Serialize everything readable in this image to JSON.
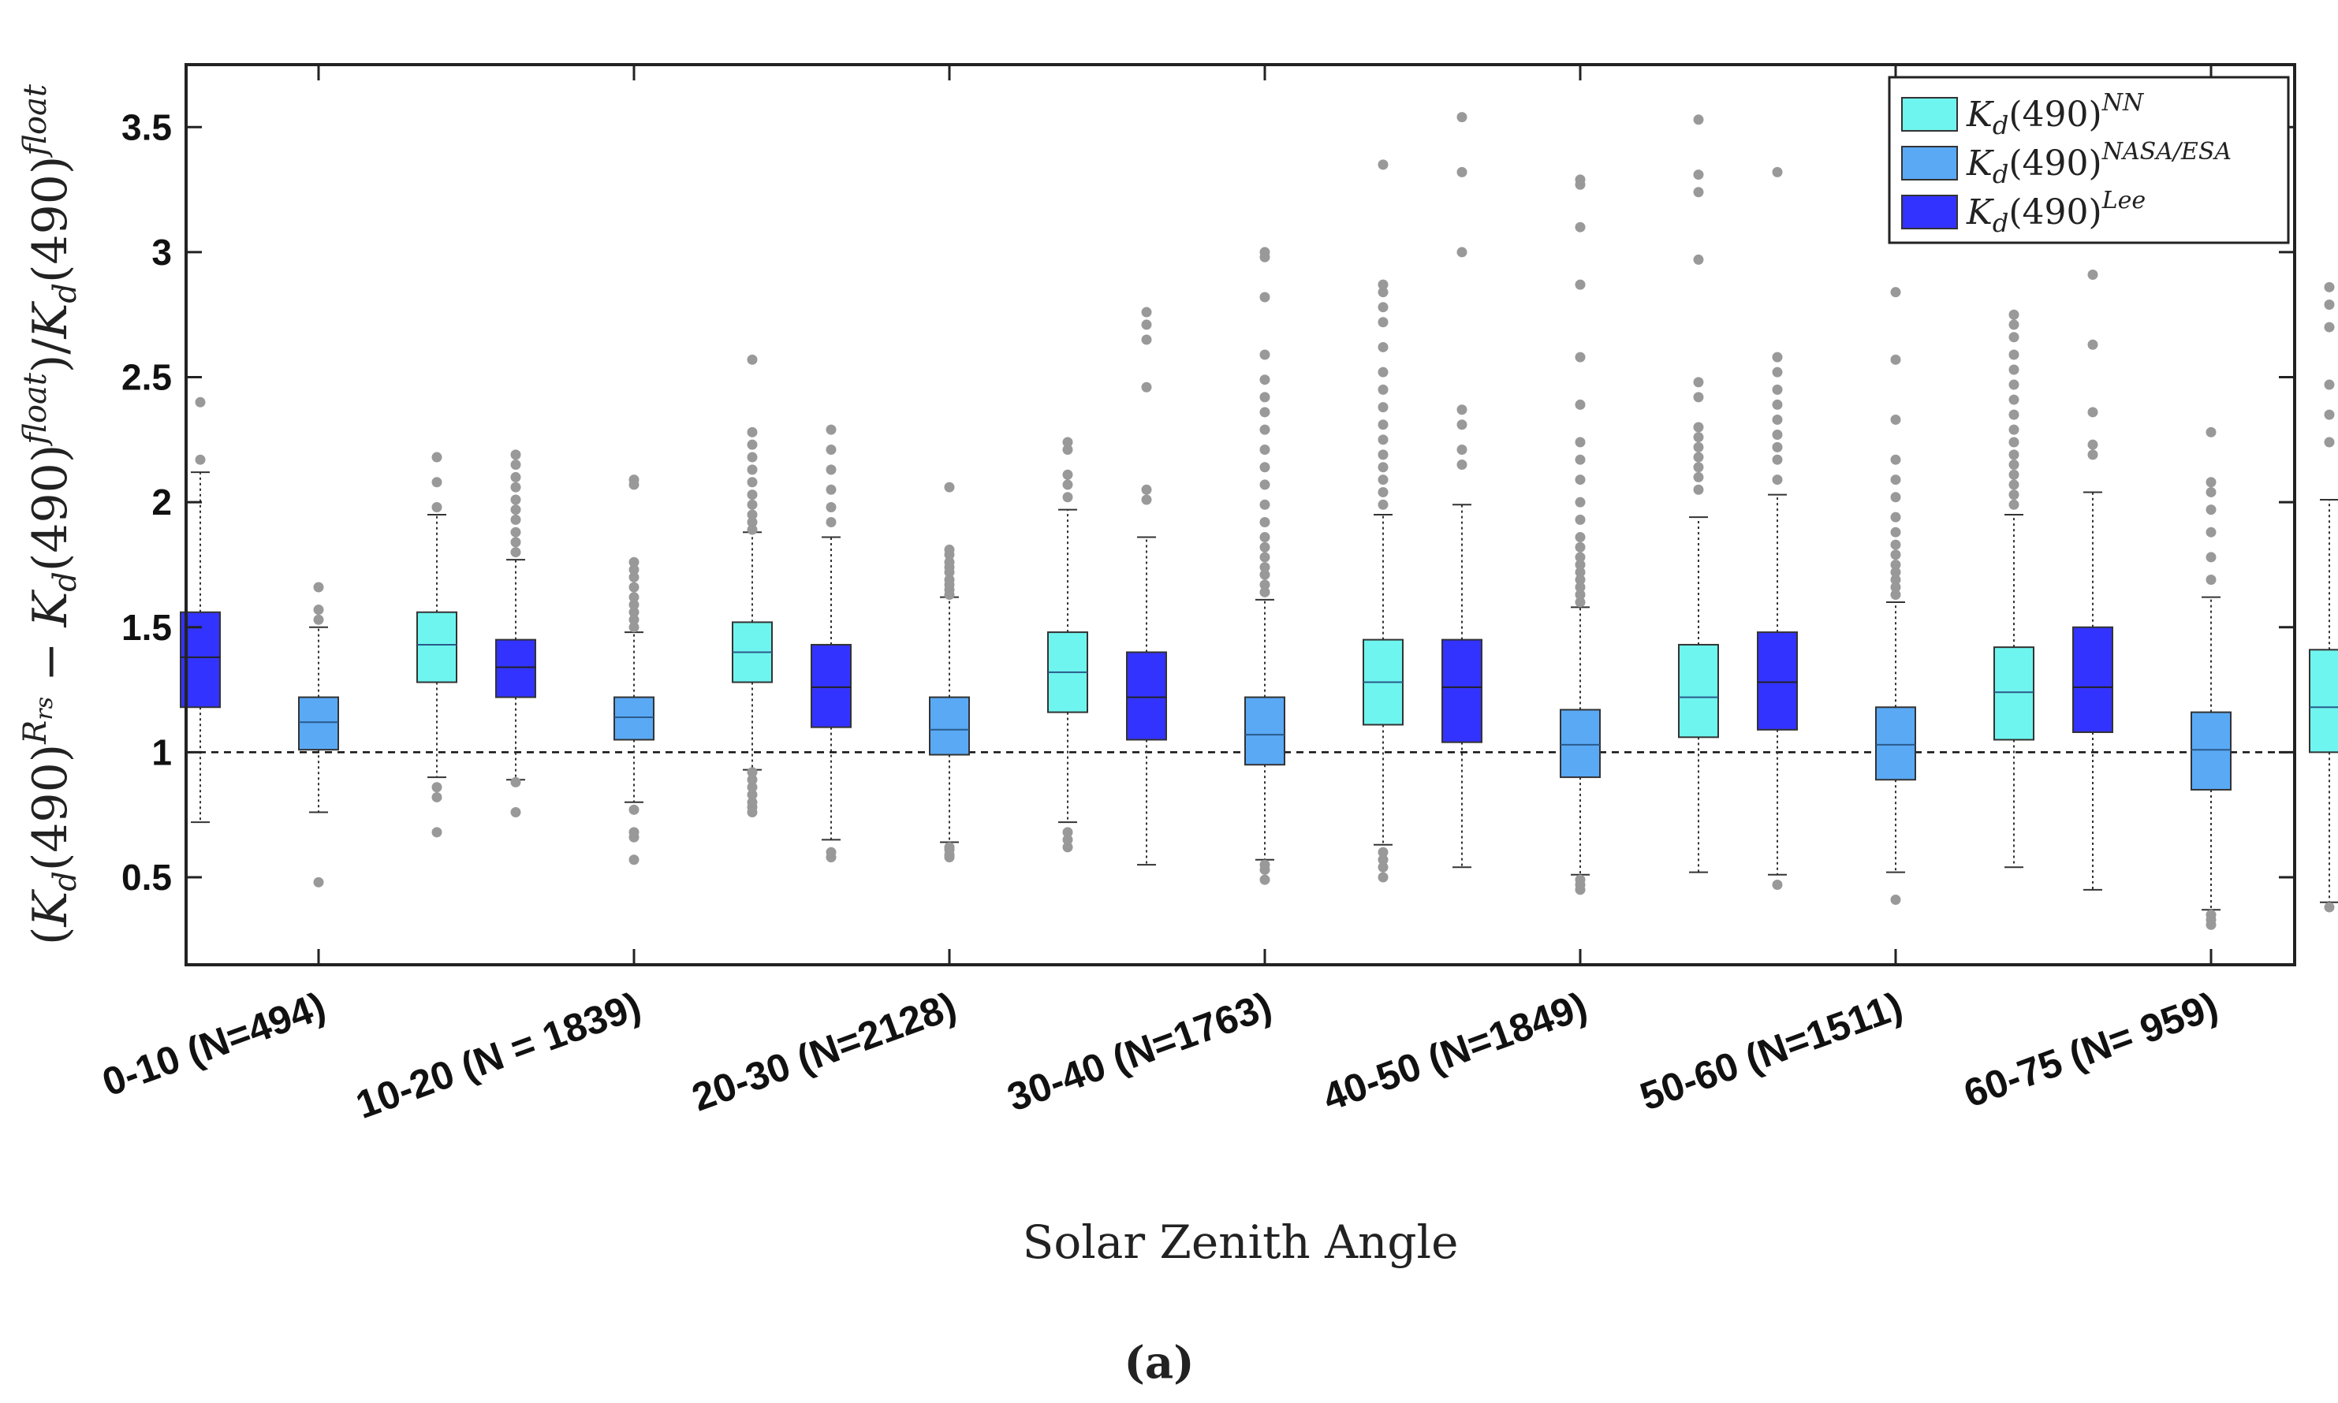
{
  "chart_data": {
    "type": "box",
    "xlabel": "Solar Zenith Angle",
    "ylabel": "(K_d(490)^{R_rs} − K_d(490)^{float})/K_d(490)^{float}",
    "ylabel_parts": {
      "open": "(",
      "kd": "K",
      "sub": "d",
      "mid": "(490)",
      "sup1": "R",
      "sup1sub": "rs",
      "minus": " − ",
      "sup2": "float",
      "close": ")/",
      "sup3": "float"
    },
    "panel_label": "(a)",
    "ylim": [
      0.15,
      3.75
    ],
    "yticks": [
      "0.5",
      "1",
      "1.5",
      "2",
      "2.5",
      "3",
      "3.5"
    ],
    "reference_line": 1,
    "grid": false,
    "legend_position": "top-right",
    "categories": [
      "0-10 (N=494)",
      "10-20 (N = 1839)",
      "20-30 (N=2128)",
      "30-40 (N=1763)",
      "40-50 (N=1849)",
      "50-60 (N=1511)",
      "60-75 (N= 959)"
    ],
    "series": [
      {
        "name": "K_d(490)^Lee",
        "legend_base": "K",
        "legend_sub": "d",
        "legend_mid": "(490)",
        "legend_sup": "Lee",
        "color": "#3333ff",
        "boxes": [
          {
            "q1": 1.18,
            "median": 1.38,
            "q3": 1.56,
            "whisker_low": 0.72,
            "whisker_high": 2.12,
            "outliers": [
              2.17,
              2.4
            ]
          },
          {
            "q1": 1.22,
            "median": 1.34,
            "q3": 1.45,
            "whisker_low": 0.89,
            "whisker_high": 1.77,
            "outliers": [
              0.76,
              0.88,
              1.8,
              1.84,
              1.88,
              1.93,
              1.97,
              2.01,
              2.06,
              2.1,
              2.15,
              2.19
            ]
          },
          {
            "q1": 1.1,
            "median": 1.26,
            "q3": 1.43,
            "whisker_low": 0.65,
            "whisker_high": 1.86,
            "outliers": [
              0.58,
              0.6,
              1.92,
              1.98,
              2.05,
              2.13,
              2.21,
              2.29
            ]
          },
          {
            "q1": 1.05,
            "median": 1.22,
            "q3": 1.4,
            "whisker_low": 0.55,
            "whisker_high": 1.86,
            "outliers": [
              2.01,
              2.05,
              2.46,
              2.65,
              2.71,
              2.76
            ]
          },
          {
            "q1": 1.04,
            "median": 1.26,
            "q3": 1.45,
            "whisker_low": 0.54,
            "whisker_high": 1.99,
            "outliers": [
              2.15,
              2.21,
              2.31,
              2.37,
              3.0,
              3.32,
              3.54
            ]
          },
          {
            "q1": 1.09,
            "median": 1.28,
            "q3": 1.48,
            "whisker_low": 0.51,
            "whisker_high": 2.03,
            "outliers": [
              0.47,
              2.09,
              2.17,
              2.22,
              2.27,
              2.33,
              2.39,
              2.45,
              2.52,
              2.58,
              3.32
            ]
          },
          {
            "q1": 1.08,
            "median": 1.26,
            "q3": 1.5,
            "whisker_low": 0.45,
            "whisker_high": 2.04,
            "outliers": [
              2.19,
              2.23,
              2.36,
              2.63,
              2.91
            ]
          }
        ]
      },
      {
        "name": "K_d(490)^NASA/ESA",
        "legend_base": "K",
        "legend_sub": "d",
        "legend_mid": "(490)",
        "legend_sup": "NASA/ESA",
        "color": "#5aa9f5",
        "boxes": [
          {
            "q1": 1.01,
            "median": 1.12,
            "q3": 1.22,
            "whisker_low": 0.76,
            "whisker_high": 1.5,
            "outliers": [
              0.48,
              1.53,
              1.57,
              1.66
            ]
          },
          {
            "q1": 1.05,
            "median": 1.14,
            "q3": 1.22,
            "whisker_low": 0.8,
            "whisker_high": 1.48,
            "outliers": [
              0.57,
              0.66,
              0.68,
              0.77,
              1.5,
              1.53,
              1.56,
              1.59,
              1.62,
              1.66,
              1.7,
              1.73,
              1.76,
              2.07,
              2.09
            ]
          },
          {
            "q1": 0.99,
            "median": 1.09,
            "q3": 1.22,
            "whisker_low": 0.64,
            "whisker_high": 1.62,
            "outliers": [
              0.58,
              0.59,
              0.61,
              0.62,
              1.63,
              1.65,
              1.67,
              1.69,
              1.72,
              1.74,
              1.76,
              1.79,
              1.81,
              2.06
            ]
          },
          {
            "q1": 0.95,
            "median": 1.07,
            "q3": 1.22,
            "whisker_low": 0.57,
            "whisker_high": 1.61,
            "outliers": [
              0.49,
              0.53,
              0.55,
              1.64,
              1.67,
              1.71,
              1.74,
              1.78,
              1.82,
              1.86,
              1.92,
              1.99,
              2.07,
              2.14,
              2.21,
              2.29,
              2.36,
              2.42,
              2.49,
              2.59,
              2.82,
              2.98,
              3.0
            ]
          },
          {
            "q1": 0.9,
            "median": 1.03,
            "q3": 1.17,
            "whisker_low": 0.51,
            "whisker_high": 1.58,
            "outliers": [
              0.45,
              0.47,
              0.49,
              1.6,
              1.63,
              1.66,
              1.69,
              1.72,
              1.75,
              1.78,
              1.82,
              1.86,
              1.93,
              2.0,
              2.09,
              2.17,
              2.24,
              2.39,
              2.58,
              2.87,
              3.1,
              3.27,
              3.29
            ]
          },
          {
            "q1": 0.89,
            "median": 1.03,
            "q3": 1.18,
            "whisker_low": 0.52,
            "whisker_high": 1.6,
            "outliers": [
              0.41,
              1.63,
              1.66,
              1.69,
              1.72,
              1.75,
              1.79,
              1.83,
              1.88,
              1.94,
              2.02,
              2.09,
              2.17,
              2.33,
              2.57,
              2.84
            ]
          },
          {
            "q1": 0.85,
            "median": 1.01,
            "q3": 1.16,
            "whisker_low": 0.37,
            "whisker_high": 1.62,
            "outliers": [
              0.31,
              0.33,
              0.35,
              1.69,
              1.78,
              1.88,
              1.97,
              2.04,
              2.08,
              2.28
            ]
          }
        ]
      },
      {
        "name": "K_d(490)^NN",
        "legend_base": "K",
        "legend_sub": "d",
        "legend_mid": "(490)",
        "legend_sup": "NN",
        "color": "#6ff5ef",
        "boxes": [
          {
            "q1": 1.28,
            "median": 1.43,
            "q3": 1.56,
            "whisker_low": 0.9,
            "whisker_high": 1.95,
            "outliers": [
              0.68,
              0.82,
              0.86,
              1.98,
              2.08,
              2.18
            ]
          },
          {
            "q1": 1.28,
            "median": 1.4,
            "q3": 1.52,
            "whisker_low": 0.93,
            "whisker_high": 1.88,
            "outliers": [
              0.76,
              0.78,
              0.8,
              0.83,
              0.86,
              0.89,
              0.92,
              1.89,
              1.92,
              1.95,
              1.99,
              2.03,
              2.08,
              2.13,
              2.18,
              2.23,
              2.28,
              2.57
            ]
          },
          {
            "q1": 1.16,
            "median": 1.32,
            "q3": 1.48,
            "whisker_low": 0.72,
            "whisker_high": 1.97,
            "outliers": [
              0.62,
              0.65,
              0.68,
              2.02,
              2.07,
              2.11,
              2.21,
              2.24
            ]
          },
          {
            "q1": 1.11,
            "median": 1.28,
            "q3": 1.45,
            "whisker_low": 0.63,
            "whisker_high": 1.95,
            "outliers": [
              0.5,
              0.54,
              0.57,
              0.6,
              1.99,
              2.04,
              2.09,
              2.14,
              2.19,
              2.25,
              2.31,
              2.38,
              2.45,
              2.52,
              2.62,
              2.72,
              2.78,
              2.84,
              2.87,
              3.35
            ]
          },
          {
            "q1": 1.06,
            "median": 1.22,
            "q3": 1.43,
            "whisker_low": 0.52,
            "whisker_high": 1.94,
            "outliers": [
              2.05,
              2.1,
              2.14,
              2.18,
              2.22,
              2.26,
              2.3,
              2.42,
              2.48,
              2.97,
              3.24,
              3.31,
              3.53
            ]
          },
          {
            "q1": 1.05,
            "median": 1.24,
            "q3": 1.42,
            "whisker_low": 0.54,
            "whisker_high": 1.95,
            "outliers": [
              1.99,
              2.03,
              2.07,
              2.11,
              2.15,
              2.19,
              2.24,
              2.29,
              2.35,
              2.41,
              2.47,
              2.53,
              2.59,
              2.66,
              2.71,
              2.75
            ]
          },
          {
            "q1": 1.0,
            "median": 1.18,
            "q3": 1.41,
            "whisker_low": 0.4,
            "whisker_high": 2.01,
            "outliers": [
              0.38,
              2.24,
              2.35,
              2.47,
              2.7,
              2.79,
              2.86
            ]
          }
        ]
      }
    ],
    "legend_order": [
      2,
      1,
      0
    ],
    "outlier_color": "#999999"
  }
}
